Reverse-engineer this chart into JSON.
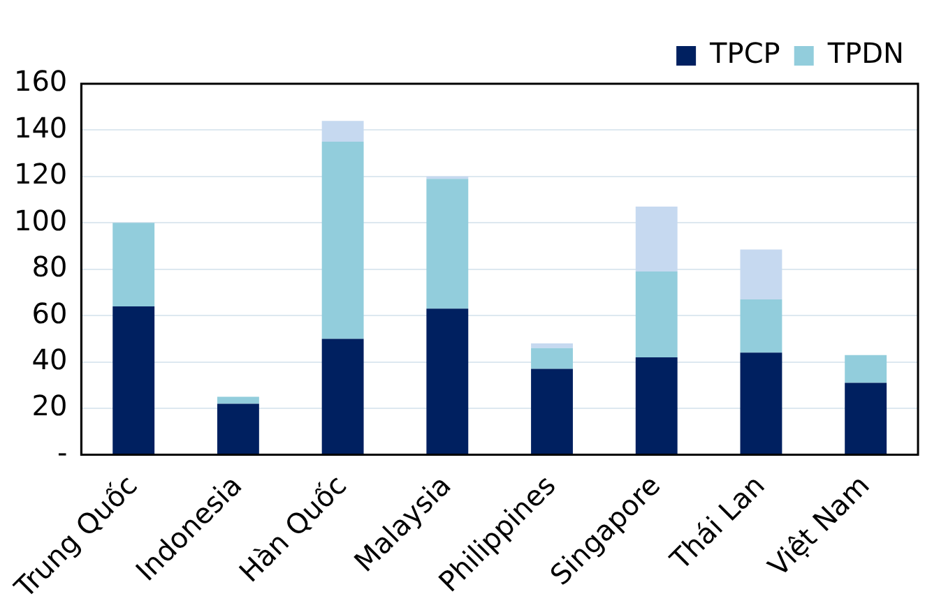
{
  "chart_data": {
    "type": "bar",
    "stacked": true,
    "categories": [
      "Trung Quốc",
      "Indonesia",
      "Hàn Quốc",
      "Malaysia",
      "Philippines",
      "Singapore",
      "Thái Lan",
      "Việt Nam"
    ],
    "series": [
      {
        "name": "TPCP",
        "color": "#002060",
        "values": [
          64,
          22,
          50,
          63,
          37,
          42,
          44,
          31
        ]
      },
      {
        "name": "TPDN",
        "color": "#92cddc",
        "values": [
          36,
          3,
          85,
          56,
          9,
          37,
          23,
          12
        ]
      },
      {
        "color": "#c6d9f0",
        "values": [
          null,
          null,
          9,
          1,
          2,
          28,
          21.5,
          null
        ]
      }
    ],
    "ylim": [
      0,
      160
    ],
    "yticks": [
      {
        "value": 0,
        "label": "-"
      },
      20,
      40,
      60,
      80,
      100,
      120,
      140,
      160
    ],
    "grid": "y",
    "legend": "top right"
  }
}
